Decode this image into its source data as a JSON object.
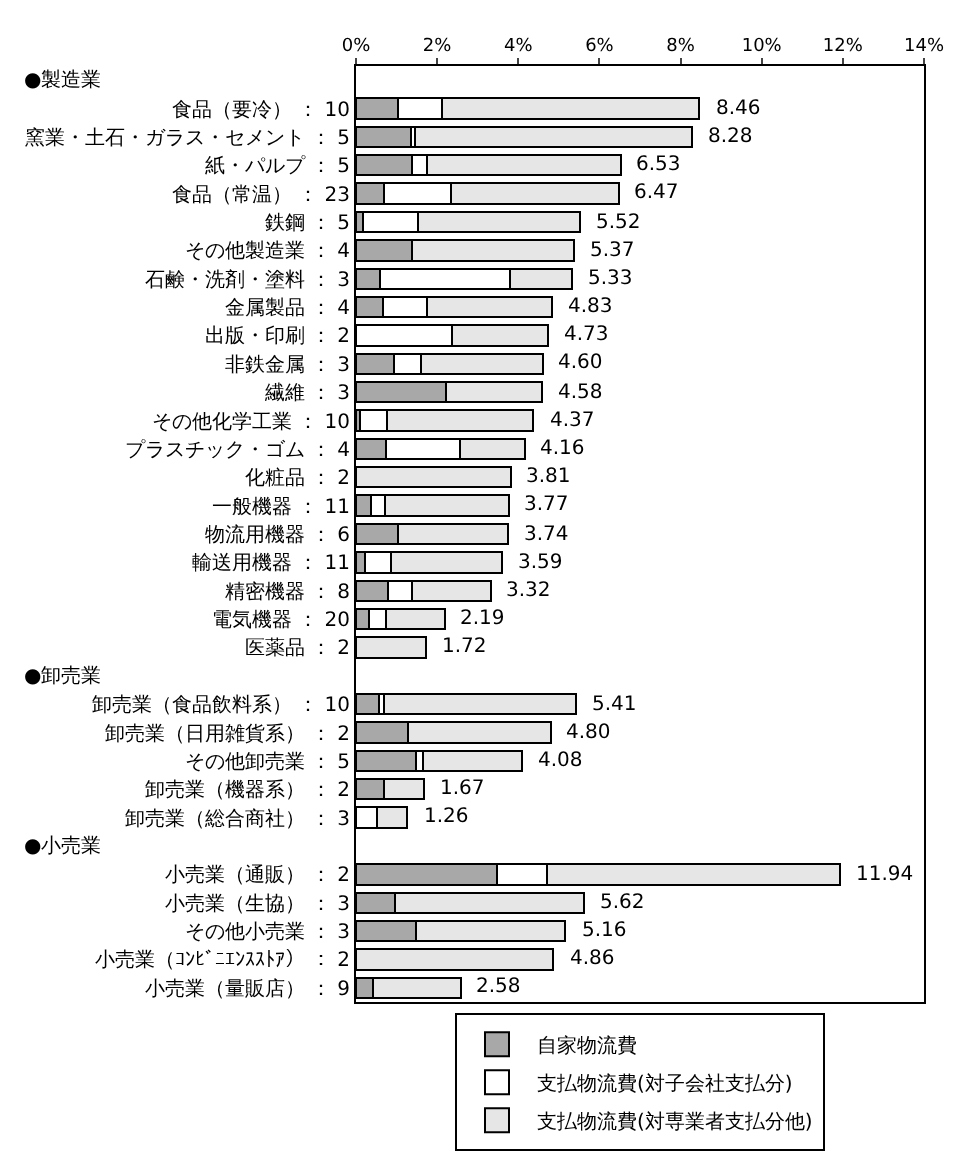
{
  "chart_data": {
    "type": "bar",
    "orientation": "horizontal",
    "stacked": true,
    "annotations": [
      "●製造業",
      "●卸売業",
      "●小売業"
    ],
    "categories": [
      null,
      "食品（要冷） ： 10",
      "窯業・土石・ガラス・セメント ： 5",
      "紙・パルプ ： 5",
      "食品（常温） ： 23",
      "鉄鋼 ： 5",
      "その他製造業 ： 4",
      "石鹸・洗剤・塗料 ： 3",
      "金属製品 ： 4",
      "出版・印刷 ： 2",
      "非鉄金属 ： 3",
      "繊維 ： 3",
      "その他化学工業 ： 10",
      "プラスチック・ゴム ： 4",
      "化粧品 ： 2",
      "一般機器 ： 11",
      "物流用機器 ： 6",
      "輸送用機器 ： 11",
      "精密機器 ： 8",
      "電気機器 ： 20",
      "医薬品 ： 2",
      null,
      "卸売業（食品飲料系） ： 10",
      "卸売業（日用雑貨系） ： 2",
      "その他卸売業 ： 5",
      "卸売業（機器系） ： 2",
      "卸売業（総合商社） ： 3",
      null,
      "小売業（通販） ： 2",
      "小売業（生協） ： 3",
      "その他小売業 ： 3",
      "小売業（ｺﾝﾋﾞﾆｴﾝｽｽﾄｱ） ： 2",
      "小売業（量販店） ： 9"
    ],
    "series": [
      {
        "name": "自家物流費",
        "color": "#a8a8a8",
        "values": [
          null,
          1.03,
          1.35,
          1.37,
          0.7,
          0.17,
          1.38,
          0.6,
          0.67,
          0,
          0.94,
          2.22,
          0.11,
          0.75,
          0,
          0.37,
          1.03,
          0.21,
          0.79,
          0.32,
          0,
          null,
          0.56,
          1.27,
          1.49,
          0.7,
          0,
          null,
          3.48,
          0.95,
          1.49,
          0,
          0.43
        ]
      },
      {
        "name": "支払物流費(対子会社支払分)",
        "color": "#ffffff",
        "values": [
          null,
          1.1,
          0.11,
          0.38,
          1.65,
          1.35,
          0,
          3.19,
          1.08,
          2.37,
          0.66,
          0,
          0.65,
          1.81,
          0,
          0.34,
          0,
          0.65,
          0.59,
          0.43,
          0,
          null,
          0.14,
          0,
          0.16,
          0,
          0.52,
          null,
          1.22,
          0,
          0,
          0,
          0
        ]
      },
      {
        "name": "支払物流費(対専業者支払分他)",
        "color": "#e6e6e6",
        "values": [
          null,
          6.33,
          6.82,
          4.78,
          4.12,
          4.0,
          3.99,
          1.54,
          3.08,
          2.36,
          3.0,
          2.36,
          3.61,
          1.6,
          3.81,
          3.06,
          2.71,
          2.73,
          1.94,
          1.44,
          1.72,
          null,
          4.71,
          3.53,
          2.43,
          0.97,
          0.74,
          null,
          7.24,
          4.67,
          3.67,
          4.86,
          2.15
        ]
      }
    ],
    "totals": [
      null,
      "8.46",
      "8.28",
      "6.53",
      "6.47",
      "5.52",
      "5.37",
      "5.33",
      "4.83",
      "4.73",
      "4.60",
      "4.58",
      "4.37",
      "4.16",
      "3.81",
      "3.77",
      "3.74",
      "3.59",
      "3.32",
      "2.19",
      "1.72",
      null,
      "5.41",
      "4.80",
      "4.08",
      "1.67",
      "1.26",
      null,
      "11.94",
      "5.62",
      "5.16",
      "4.86",
      "2.58"
    ],
    "xlim": [
      0,
      14
    ],
    "xticks": [
      {
        "value": 0,
        "label": "0%"
      },
      {
        "value": 2,
        "label": "2%"
      },
      {
        "value": 4,
        "label": "4%"
      },
      {
        "value": 6,
        "label": "6%"
      },
      {
        "value": 8,
        "label": "8%"
      },
      {
        "value": 10,
        "label": "10%"
      },
      {
        "value": 12,
        "label": "12%"
      },
      {
        "value": 14,
        "label": "14%"
      }
    ],
    "legend": "bottom"
  }
}
